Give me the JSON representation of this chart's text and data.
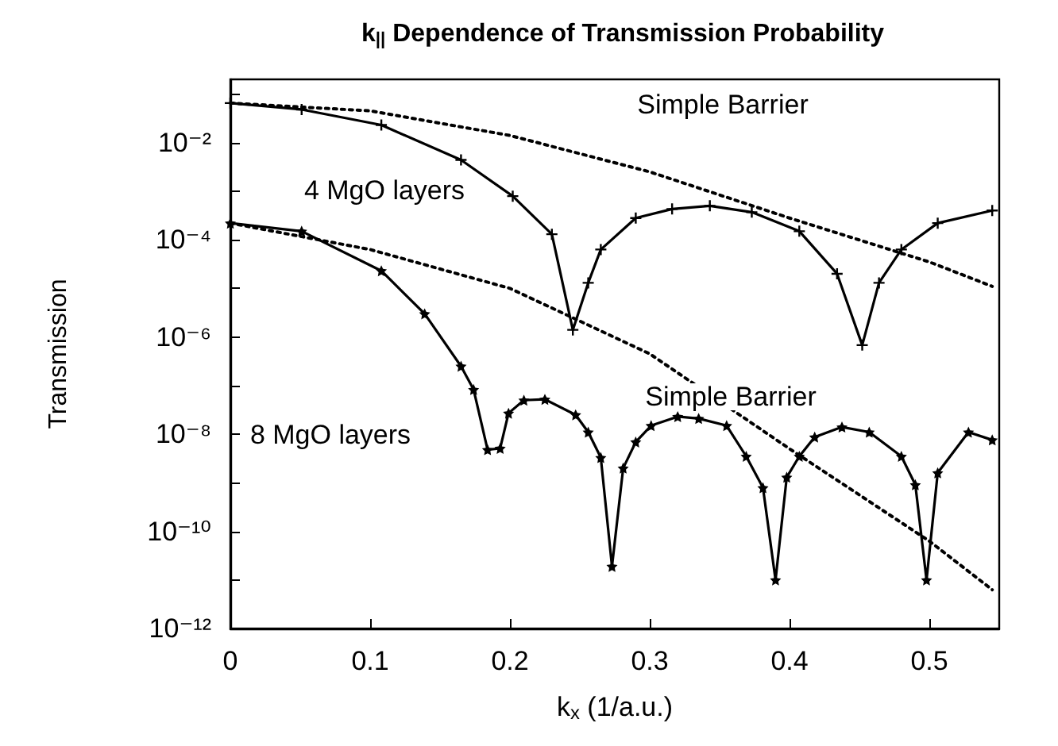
{
  "chart_data": {
    "type": "line",
    "title": "k$_{||}$ Dependence of Transmission Probability",
    "xlabel": "k$_{x}$ (1/a.u.)",
    "ylabel": "Transmission",
    "log": "y",
    "grid": false,
    "xlim": [
      0,
      0.55
    ],
    "xticks": [
      0,
      0.1,
      0.2,
      0.3,
      0.4,
      0.5
    ],
    "ylim": [
      1e-12,
      0.2
    ],
    "yticks": [
      {
        "value": 1e-12,
        "label": "10⁻¹²"
      },
      {
        "value": 1e-11,
        "label": null
      },
      {
        "value": 1e-10,
        "label": "10⁻¹⁰"
      },
      {
        "value": 1e-09,
        "label": null
      },
      {
        "value": 1e-08,
        "label": "10⁻⁸"
      },
      {
        "value": 1e-07,
        "label": null
      },
      {
        "value": 1e-06,
        "label": "10⁻⁶"
      },
      {
        "value": 1e-05,
        "label": null
      },
      {
        "value": 0.0001,
        "label": "10⁻⁴"
      },
      {
        "value": 0.001,
        "label": null
      },
      {
        "value": 0.01,
        "label": "10⁻²"
      },
      {
        "value": 0.1,
        "label": null
      }
    ],
    "series": [
      {
        "color": "#000000",
        "marker": "cross",
        "line_style": "solid",
        "x": [
          0,
          0.051,
          0.108,
          0.165,
          0.202,
          0.23,
          0.245,
          0.256,
          0.265,
          0.29,
          0.316,
          0.343,
          0.373,
          0.407,
          0.434,
          0.452,
          0.464,
          0.48,
          0.506,
          0.545
        ],
        "values": [
          0.065,
          0.048,
          0.023,
          0.0044,
          0.00079,
          0.00013,
          1.4e-06,
          1.3e-05,
          6.3e-05,
          0.00028,
          0.00043,
          0.0005,
          0.00037,
          0.00015,
          2e-05,
          6.8e-07,
          1.3e-05,
          6.3e-05,
          0.00022,
          0.0004
        ]
      },
      {
        "color": "#000000",
        "marker": "none",
        "line_style": "dotted",
        "x": [
          0,
          0.1,
          0.2,
          0.3,
          0.4,
          0.5,
          0.545
        ],
        "values": [
          0.065,
          0.045,
          0.014,
          0.0025,
          0.00028,
          3.5e-05,
          1.1e-05
        ]
      },
      {
        "color": "#000000",
        "marker": "star",
        "line_style": "solid",
        "x": [
          0,
          0.051,
          0.108,
          0.139,
          0.165,
          0.174,
          0.184,
          0.193,
          0.199,
          0.21,
          0.225,
          0.247,
          0.256,
          0.265,
          0.273,
          0.281,
          0.29,
          0.301,
          0.32,
          0.335,
          0.355,
          0.369,
          0.381,
          0.39,
          0.398,
          0.407,
          0.418,
          0.4375,
          0.457,
          0.48,
          0.49,
          0.498,
          0.506,
          0.528,
          0.545
        ],
        "values": [
          0.00022,
          0.00015,
          2.3e-05,
          3e-06,
          2.5e-07,
          8.3e-08,
          4.8e-09,
          5.1e-09,
          2.7e-08,
          5e-08,
          5.2e-08,
          2.5e-08,
          1.1e-08,
          3.3e-09,
          1.9e-11,
          2e-09,
          6.9e-09,
          1.5e-08,
          2.3e-08,
          2.1e-08,
          1.5e-08,
          3.5e-09,
          7.9e-10,
          1e-11,
          1.3e-09,
          3.5e-09,
          8.7e-09,
          1.4e-08,
          1.1e-08,
          3.5e-09,
          9.1e-10,
          1e-11,
          1.6e-09,
          1.1e-08,
          7.6e-09
        ]
      },
      {
        "color": "#000000",
        "marker": "none",
        "line_style": "dotted",
        "x": [
          0,
          0.1,
          0.2,
          0.3,
          0.4,
          0.5,
          0.545
        ],
        "values": [
          0.00022,
          6.3e-05,
          1e-05,
          4.5e-07,
          5e-09,
          6.3e-11,
          6.3e-12
        ]
      }
    ],
    "annotations": [
      "Simple Barrier",
      "4 MgO layers",
      "Simple Barrier",
      "8 MgO layers"
    ]
  }
}
